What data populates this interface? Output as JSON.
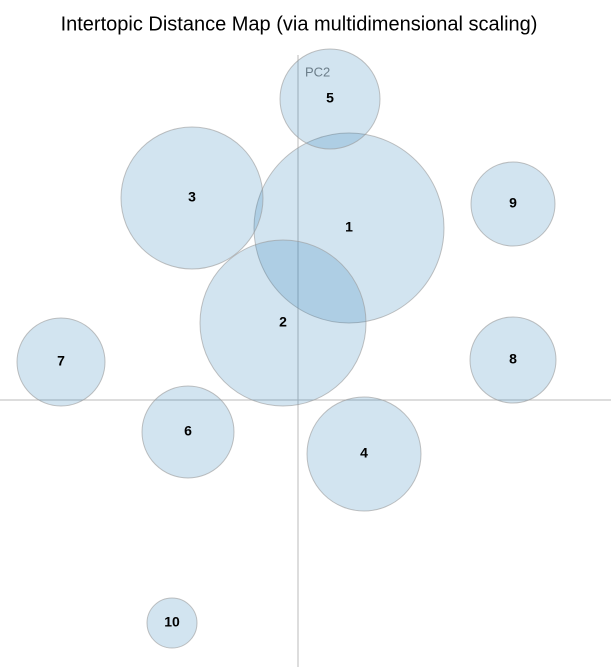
{
  "chart_data": {
    "type": "bubble",
    "title": "Intertopic Distance Map (via multidimensional scaling)",
    "y_label": "PC2",
    "xlim": [
      -2.98,
      3.13
    ],
    "ylim": [
      -2.67,
      4.0
    ],
    "color": "#1f77b4",
    "labels": [
      "1",
      "2",
      "3",
      "4",
      "5",
      "6",
      "7",
      "8",
      "9",
      "10"
    ],
    "x": [
      0.51,
      -0.15,
      -1.06,
      0.66,
      0.32,
      -1.1,
      -2.37,
      2.15,
      2.15,
      -1.26
    ],
    "y": [
      1.72,
      0.77,
      2.02,
      -0.54,
      3.01,
      -0.32,
      0.38,
      0.4,
      1.96,
      -2.23
    ],
    "sizes": [
      0.95,
      0.83,
      0.71,
      0.57,
      0.5,
      0.46,
      0.44,
      0.43,
      0.42,
      0.25
    ]
  }
}
